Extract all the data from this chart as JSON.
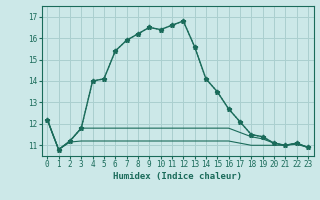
{
  "xlabel": "Humidex (Indice chaleur)",
  "background_color": "#cce8e8",
  "grid_color": "#aacfcf",
  "line_color": "#1a6b5a",
  "xlim": [
    -0.5,
    23.5
  ],
  "ylim": [
    10.5,
    17.5
  ],
  "yticks": [
    11,
    12,
    13,
    14,
    15,
    16,
    17
  ],
  "xticks": [
    0,
    1,
    2,
    3,
    4,
    5,
    6,
    7,
    8,
    9,
    10,
    11,
    12,
    13,
    14,
    15,
    16,
    17,
    18,
    19,
    20,
    21,
    22,
    23
  ],
  "x": [
    0,
    1,
    2,
    3,
    4,
    5,
    6,
    7,
    8,
    9,
    10,
    11,
    12,
    13,
    14,
    15,
    16,
    17,
    18,
    19,
    20,
    21,
    22,
    23
  ],
  "y_main_solid": [
    12.2,
    10.8,
    11.2,
    11.8,
    14.0,
    14.1,
    15.4,
    15.9,
    16.2,
    16.5,
    16.4,
    16.6,
    16.8,
    15.6,
    14.1,
    13.5,
    12.7,
    12.1,
    11.5,
    11.4,
    11.1,
    11.0,
    11.1,
    10.9
  ],
  "y_main_dot": [
    12.2,
    10.8,
    11.2,
    11.8,
    14.0,
    14.1,
    15.4,
    15.9,
    16.2,
    16.5,
    16.4,
    16.6,
    16.8,
    15.6,
    14.1,
    13.5,
    12.7,
    12.1,
    11.5,
    11.4,
    11.1,
    11.0,
    11.1,
    10.9
  ],
  "y_flat1": [
    12.2,
    10.8,
    11.2,
    11.8,
    11.8,
    11.8,
    11.8,
    11.8,
    11.8,
    11.8,
    11.8,
    11.8,
    11.8,
    11.8,
    11.8,
    11.8,
    11.8,
    11.6,
    11.4,
    11.3,
    11.1,
    11.0,
    11.1,
    10.9
  ],
  "y_flat2": [
    12.2,
    10.8,
    11.15,
    11.2,
    11.2,
    11.2,
    11.2,
    11.2,
    11.2,
    11.2,
    11.2,
    11.2,
    11.2,
    11.2,
    11.2,
    11.2,
    11.2,
    11.1,
    11.0,
    11.0,
    11.0,
    11.0,
    11.05,
    10.9
  ]
}
